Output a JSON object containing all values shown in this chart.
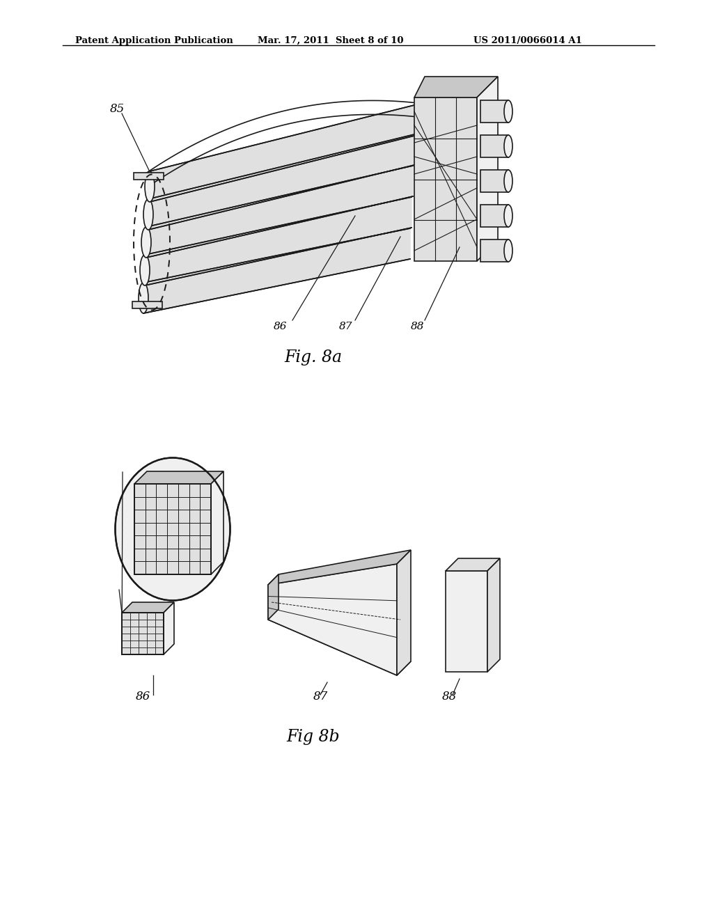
{
  "bg_color": "#ffffff",
  "header_left": "Patent Application Publication",
  "header_mid": "Mar. 17, 2011  Sheet 8 of 10",
  "header_right": "US 2011/0066014 A1",
  "fig8a_label": "Fig. 8a",
  "fig8b_label": "Fig 8b",
  "label_85": "85",
  "label_86": "86",
  "label_87": "87",
  "label_88": "88",
  "label_86b": "86",
  "label_87b": "87",
  "label_88b": "88",
  "line_color": "#1a1a1a",
  "fill_light": "#f0f0f0",
  "fill_mid": "#e0e0e0",
  "fill_dark": "#c8c8c8"
}
